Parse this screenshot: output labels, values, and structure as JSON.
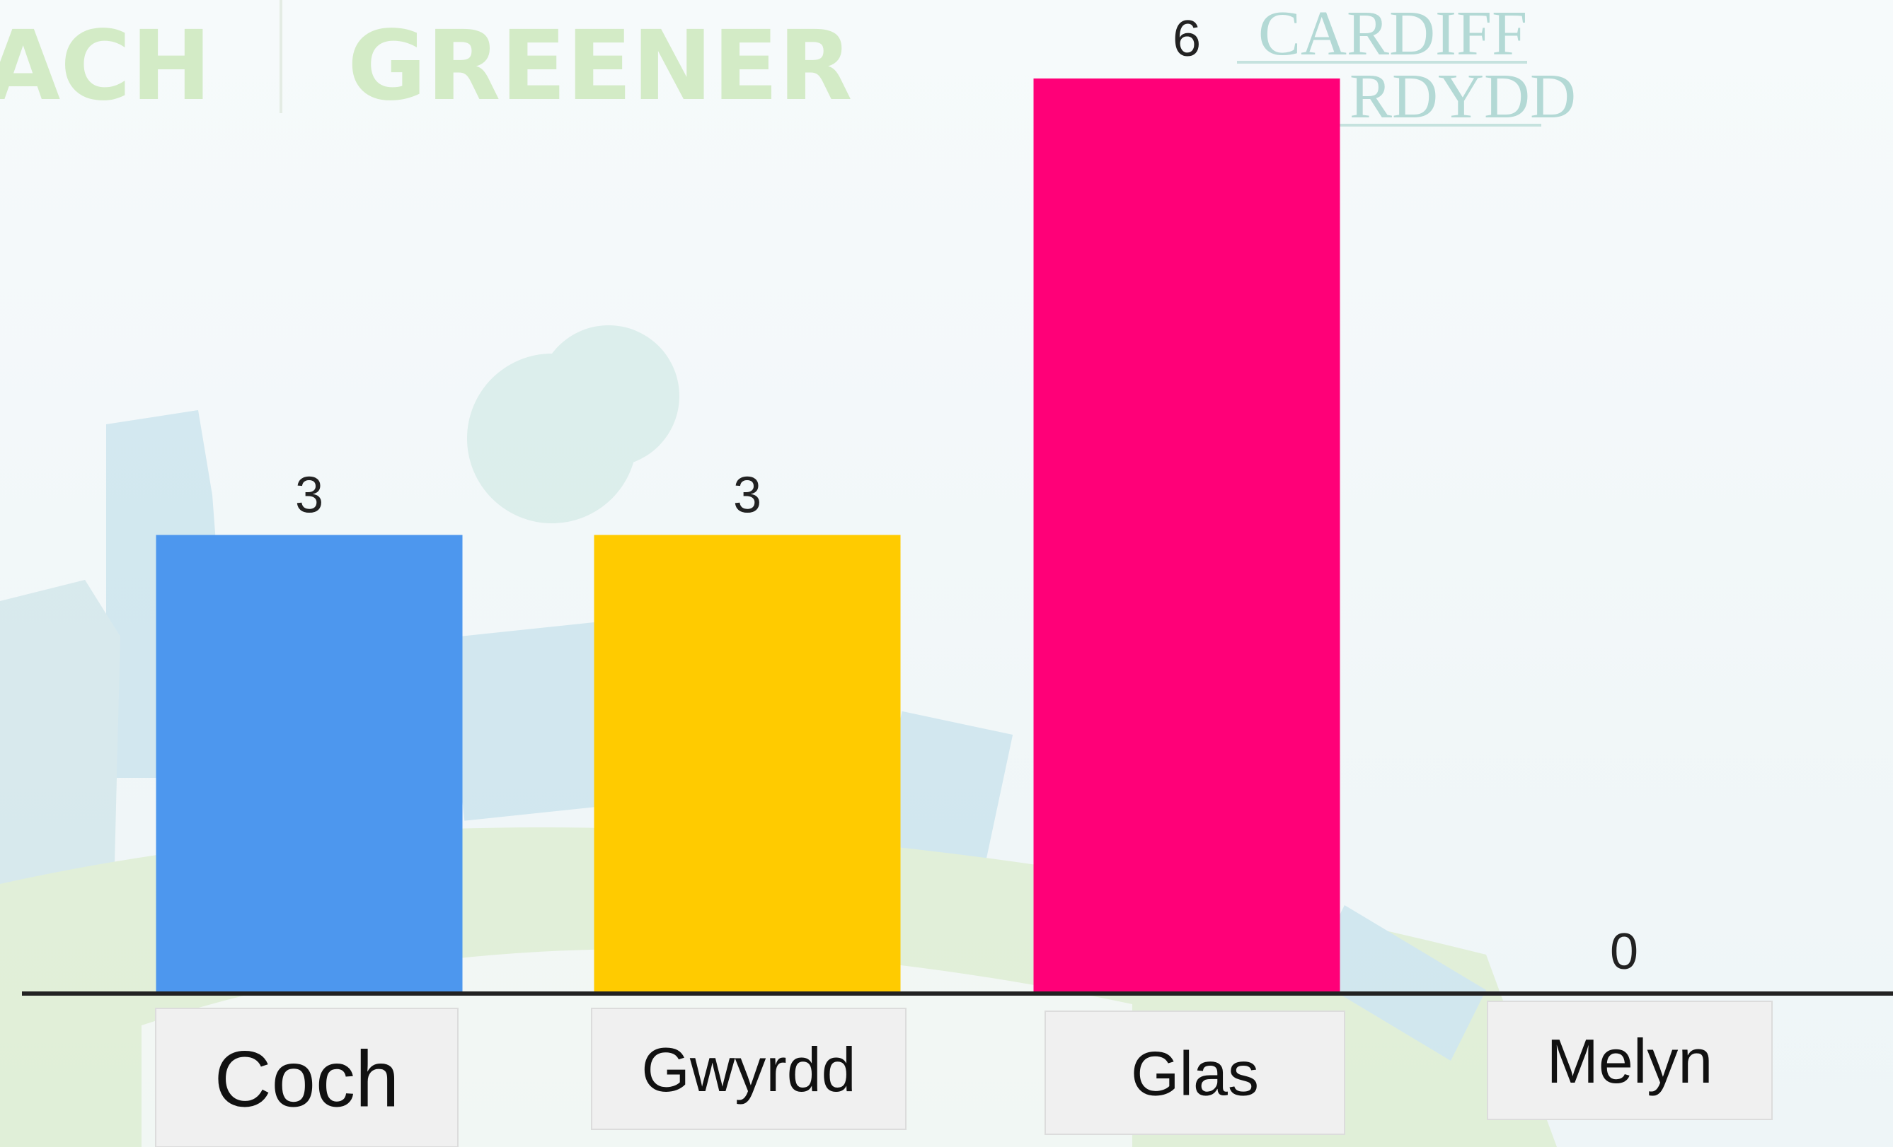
{
  "background": {
    "texts": [
      "ACH",
      "GREENER",
      "CARDIFF",
      "RDYDD"
    ]
  },
  "chart_data": {
    "type": "bar",
    "categories": [
      "Coch",
      "Gwyrdd",
      "Glas",
      "Melyn"
    ],
    "values": [
      3,
      3,
      6,
      0
    ],
    "colors": [
      "#4d97ee",
      "#ffcb00",
      "#ff0078",
      "#9e9e9e"
    ]
  }
}
